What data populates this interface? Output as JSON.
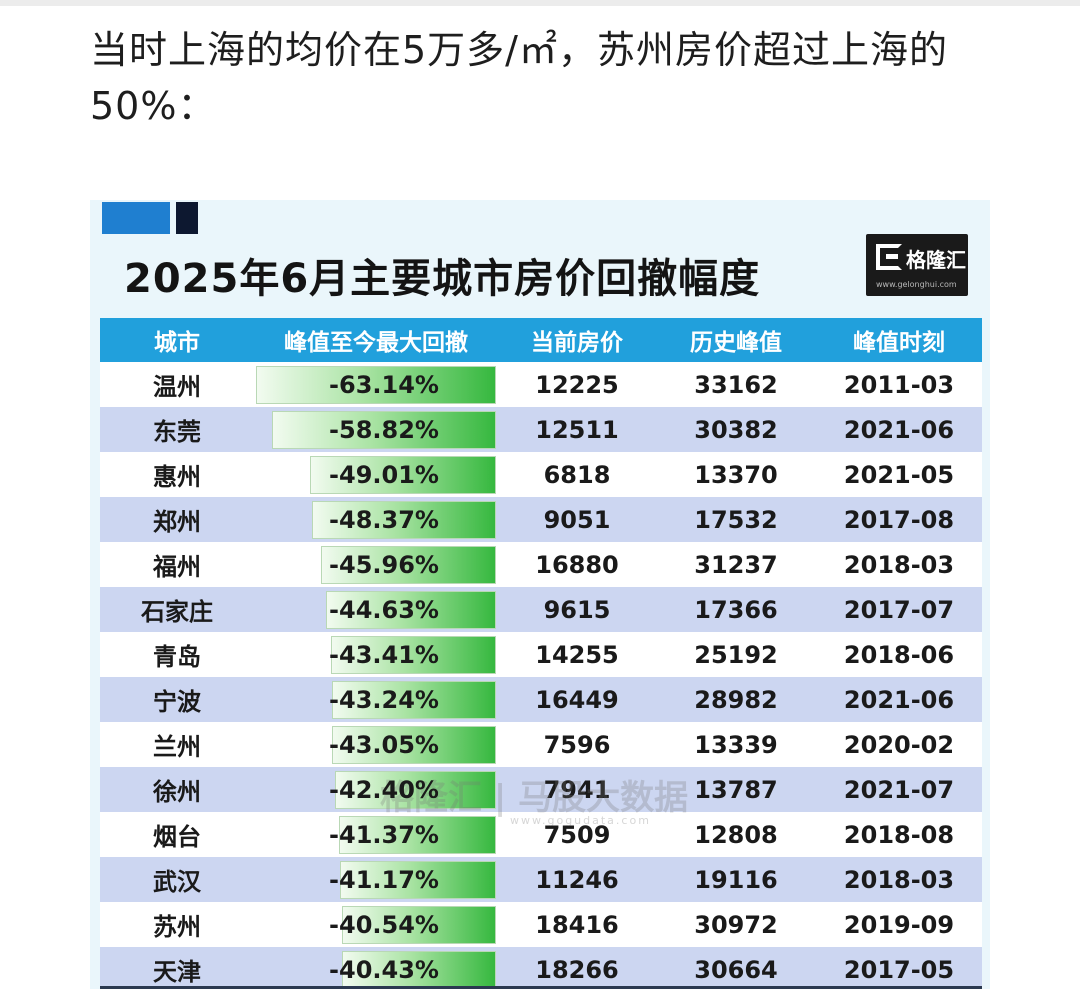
{
  "intro_text": "当时上海的均价在5万多/㎡，苏州房价超过上海的50%：",
  "infographic": {
    "title": "2025年6月主要城市房价回撤幅度",
    "brand": {
      "name": "格隆汇",
      "url": "www.gelonghui.com"
    },
    "watermark": {
      "text": "格隆汇 | 马股大数据",
      "url": "www.gogudata.com"
    },
    "colors": {
      "header": "#21a0dc",
      "row_alt": "#ccd6f1",
      "bar": "#36b83f",
      "accent": "#1f7fd0"
    },
    "columns": [
      "城市",
      "峰值至今最大回撤",
      "当前房价",
      "历史峰值",
      "峰值时刻"
    ],
    "rows": [
      {
        "city": "温州",
        "drawdown": "-63.14%",
        "drawdown_value": -63.14,
        "current": "12225",
        "peak": "33162",
        "peak_time": "2011-03"
      },
      {
        "city": "东莞",
        "drawdown": "-58.82%",
        "drawdown_value": -58.82,
        "current": "12511",
        "peak": "30382",
        "peak_time": "2021-06"
      },
      {
        "city": "惠州",
        "drawdown": "-49.01%",
        "drawdown_value": -49.01,
        "current": "6818",
        "peak": "13370",
        "peak_time": "2021-05"
      },
      {
        "city": "郑州",
        "drawdown": "-48.37%",
        "drawdown_value": -48.37,
        "current": "9051",
        "peak": "17532",
        "peak_time": "2017-08"
      },
      {
        "city": "福州",
        "drawdown": "-45.96%",
        "drawdown_value": -45.96,
        "current": "16880",
        "peak": "31237",
        "peak_time": "2018-03"
      },
      {
        "city": "石家庄",
        "drawdown": "-44.63%",
        "drawdown_value": -44.63,
        "current": "9615",
        "peak": "17366",
        "peak_time": "2017-07"
      },
      {
        "city": "青岛",
        "drawdown": "-43.41%",
        "drawdown_value": -43.41,
        "current": "14255",
        "peak": "25192",
        "peak_time": "2018-06"
      },
      {
        "city": "宁波",
        "drawdown": "-43.24%",
        "drawdown_value": -43.24,
        "current": "16449",
        "peak": "28982",
        "peak_time": "2021-06"
      },
      {
        "city": "兰州",
        "drawdown": "-43.05%",
        "drawdown_value": -43.05,
        "current": "7596",
        "peak": "13339",
        "peak_time": "2020-02"
      },
      {
        "city": "徐州",
        "drawdown": "-42.40%",
        "drawdown_value": -42.4,
        "current": "7941",
        "peak": "13787",
        "peak_time": "2021-07"
      },
      {
        "city": "烟台",
        "drawdown": "-41.37%",
        "drawdown_value": -41.37,
        "current": "7509",
        "peak": "12808",
        "peak_time": "2018-08"
      },
      {
        "city": "武汉",
        "drawdown": "-41.17%",
        "drawdown_value": -41.17,
        "current": "11246",
        "peak": "19116",
        "peak_time": "2018-03"
      },
      {
        "city": "苏州",
        "drawdown": "-40.54%",
        "drawdown_value": -40.54,
        "current": "18416",
        "peak": "30972",
        "peak_time": "2019-09"
      },
      {
        "city": "天津",
        "drawdown": "-40.43%",
        "drawdown_value": -40.43,
        "current": "18266",
        "peak": "30664",
        "peak_time": "2017-05"
      }
    ]
  }
}
